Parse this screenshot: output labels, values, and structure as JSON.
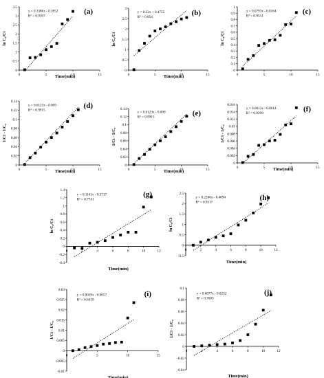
{
  "chart_data": [
    {
      "id": "a",
      "type": "scatter",
      "panel_label": "(a)",
      "equation": "y = 0.3386x - 0.3952",
      "r2": "R² = 0.9307",
      "ylabel": "ln C₀/Ct",
      "xlabel": "Time(min)",
      "xlim": [
        0,
        15
      ],
      "ylim": [
        0,
        3.5
      ],
      "xticks": [
        0,
        5,
        10,
        15
      ],
      "xtick_labels": [
        "0",
        "5",
        "10",
        "15"
      ],
      "yticks": [
        0,
        0.5,
        1,
        1.5,
        2,
        2.5,
        3,
        3.5
      ],
      "ytick_labels": [
        "0",
        "0.5",
        "1",
        "1.5",
        "2",
        "2.5",
        "3",
        "3.5"
      ],
      "x": [
        1,
        2,
        3,
        4,
        5,
        6,
        7,
        8,
        9,
        10
      ],
      "y": [
        0.02,
        0.68,
        0.7,
        0.85,
        1.13,
        1.3,
        1.48,
        2.56,
        2.8,
        3.25
      ]
    },
    {
      "id": "b",
      "type": "scatter",
      "panel_label": "(b)",
      "equation": "y = 0.22x + 0.4755",
      "r2": "R² = 0.854",
      "ylabel": "ln C₀/Ct",
      "xlabel": "Time(min)",
      "xlim": [
        0,
        15
      ],
      "ylim": [
        0,
        3
      ],
      "xticks": [
        0,
        5,
        10,
        15
      ],
      "xtick_labels": [
        "0",
        "5",
        "10",
        "15"
      ],
      "yticks": [
        0,
        0.5,
        1,
        1.5,
        2,
        2.5,
        3
      ],
      "ytick_labels": [
        "0",
        "0.5",
        "1",
        "1.5",
        "2",
        "2.5",
        "3"
      ],
      "x": [
        1,
        2,
        3,
        4,
        5,
        6,
        7,
        8,
        9,
        10,
        11
      ],
      "y": [
        0.02,
        0.95,
        1.3,
        1.65,
        1.9,
        2.0,
        2.1,
        2.25,
        2.35,
        2.48,
        2.55
      ]
    },
    {
      "id": "c",
      "type": "scatter",
      "panel_label": "(c)",
      "equation": "y = 0.0793x - 0.0164",
      "r2": "R² = 0.9551",
      "ylabel": "ln C₀/Ct",
      "xlabel": "",
      "xlim": [
        0,
        15
      ],
      "ylim": [
        0,
        1
      ],
      "xticks": [
        0,
        5,
        10,
        15
      ],
      "xtick_labels": [
        "0",
        "5",
        "10",
        "15"
      ],
      "yticks": [
        0,
        0.1,
        0.2,
        0.3,
        0.4,
        0.5,
        0.6,
        0.7,
        0.8,
        0.9,
        1
      ],
      "ytick_labels": [
        "0",
        "0.1",
        "0.2",
        "0.3",
        "0.4",
        "0.5",
        "0.6",
        "0.7",
        "0.8",
        "0.9",
        "1"
      ],
      "x": [
        1,
        2,
        3,
        4,
        5,
        6,
        7,
        8,
        9,
        10,
        11
      ],
      "y": [
        0.02,
        0.17,
        0.23,
        0.39,
        0.42,
        0.47,
        0.48,
        0.55,
        0.72,
        0.73,
        0.91
      ]
    },
    {
      "id": "d",
      "type": "scatter",
      "panel_label": "(d)",
      "equation": "y = 0.0123x - 0.009",
      "r2": "R² = 0.9915",
      "ylabel": "1/Ct - 1/C₀",
      "xlabel": "Time(min)",
      "xlim": [
        0,
        15
      ],
      "ylim": [
        0,
        0.14
      ],
      "xticks": [
        0,
        5,
        10,
        15
      ],
      "xtick_labels": [
        "0",
        "5",
        "10",
        "15"
      ],
      "yticks": [
        0,
        0.02,
        0.04,
        0.06,
        0.08,
        0.1,
        0.12,
        0.14
      ],
      "ytick_labels": [
        "0",
        "0.02",
        "0.04",
        "0.06",
        "0.08",
        "0.1",
        "0.12",
        "0.14"
      ],
      "x": [
        1,
        2,
        3,
        4,
        5,
        6,
        7,
        8,
        9,
        10,
        11
      ],
      "y": [
        0.001,
        0.016,
        0.026,
        0.039,
        0.05,
        0.06,
        0.07,
        0.083,
        0.095,
        0.108,
        0.121
      ]
    },
    {
      "id": "e",
      "type": "scatter",
      "panel_label": "(e)",
      "equation": "y = 0.0123x - 0.009",
      "r2": "R² = 0.9915",
      "ylabel": "1/Ct - 1/C₀",
      "xlabel": "Time(min)",
      "xlim": [
        0,
        15
      ],
      "ylim": [
        0,
        0.14
      ],
      "xticks": [
        0,
        5,
        10,
        15
      ],
      "xtick_labels": [
        "0",
        "5",
        "10",
        "15"
      ],
      "yticks": [
        0,
        0.02,
        0.04,
        0.06,
        0.08,
        0.1,
        0.12,
        0.14
      ],
      "ytick_labels": [
        "0",
        "0.02",
        "0.04",
        "0.06",
        "0.08",
        "0.1",
        "0.12",
        "0.14"
      ],
      "x": [
        1,
        2,
        3,
        4,
        5,
        6,
        7,
        8,
        9,
        10,
        11
      ],
      "y": [
        0.001,
        0.016,
        0.026,
        0.039,
        0.05,
        0.06,
        0.07,
        0.083,
        0.095,
        0.108,
        0.121
      ]
    },
    {
      "id": "f",
      "type": "scatter",
      "panel_label": "(f)",
      "equation": "y = 0.0013x - 0.0014",
      "r2": "R² = 0.9299",
      "ylabel": "1/Ct - 1/C₀",
      "xlabel": "Time(min)",
      "xlim": [
        0,
        15
      ],
      "ylim": [
        0,
        0.016
      ],
      "xticks": [
        0,
        5,
        10,
        15
      ],
      "xtick_labels": [
        "0",
        "5",
        "10",
        "15"
      ],
      "yticks": [
        0,
        0.002,
        0.004,
        0.006,
        0.008,
        0.01,
        0.012,
        0.014,
        0.016
      ],
      "ytick_labels": [
        "0",
        "0.002",
        "0.004",
        "0.006",
        "0.008",
        "0.01",
        "0.012",
        "0.014",
        "0.016"
      ],
      "x": [
        1,
        2,
        3,
        4,
        5,
        6,
        7,
        8,
        9,
        10,
        11
      ],
      "y": [
        0.0001,
        0.0018,
        0.0023,
        0.0048,
        0.005,
        0.006,
        0.0062,
        0.0078,
        0.0104,
        0.0107,
        0.0151
      ]
    },
    {
      "id": "g",
      "type": "scatter",
      "panel_label": "(g)",
      "equation": "y = 0.1161x - 0.3717",
      "r2": "R² = 0.7741",
      "ylabel": "ln C₀/Ct",
      "xlabel": "Time(min)",
      "xlim": [
        0,
        12
      ],
      "ylim": [
        -0.4,
        1.4
      ],
      "xticks": [
        0,
        2,
        4,
        6,
        8,
        10,
        12
      ],
      "xtick_labels": [
        "0",
        "2",
        "4",
        "6",
        "8",
        "10",
        "12"
      ],
      "yticks": [
        -0.4,
        -0.2,
        0,
        0.2,
        0.4,
        0.6,
        0.8,
        1,
        1.2,
        1.4
      ],
      "ytick_labels": [
        "-0.4",
        "-0.2",
        "0",
        "0.2",
        "0.4",
        "0.6",
        "0.8",
        "1",
        "1.2",
        "1.4"
      ],
      "x": [
        1,
        2,
        3,
        4,
        5,
        6,
        7,
        8,
        9,
        10,
        11
      ],
      "y": [
        -0.04,
        -0.05,
        0.08,
        0.1,
        0.14,
        0.22,
        0.28,
        0.35,
        0.35,
        0.97,
        1.22
      ]
    },
    {
      "id": "h",
      "type": "scatter",
      "panel_label": "(h)",
      "equation": "y = 0.2266x - 0.4694",
      "r2": "R² = 0.9317",
      "ylabel": "ln C₀/Ct",
      "xlabel": "Time(min)",
      "xlim": [
        0,
        12
      ],
      "ylim": [
        -0.5,
        2.5
      ],
      "xticks": [
        0,
        2,
        4,
        6,
        8,
        10,
        12
      ],
      "xtick_labels": [
        "0",
        "2",
        "4",
        "6",
        "8",
        "10",
        "12"
      ],
      "yticks": [
        -0.5,
        0,
        0.5,
        1,
        1.5,
        2,
        2.5
      ],
      "ytick_labels": [
        "-0.5",
        "0",
        "0.5",
        "1",
        "1.5",
        "2",
        "2.5"
      ],
      "x": [
        1,
        2,
        3,
        4,
        5,
        6,
        7,
        8,
        9,
        10,
        11
      ],
      "y": [
        0.0,
        0.15,
        0.25,
        0.38,
        0.45,
        0.55,
        0.97,
        1.2,
        1.55,
        1.98,
        2.28
      ]
    },
    {
      "id": "i",
      "type": "scatter",
      "panel_label": "(i)",
      "equation": "y = 0.0019x - 0.0057",
      "r2": "R² = 0.6439",
      "ylabel": "1/Ct - 1/C₀",
      "xlabel": "Time(min)",
      "xlim": [
        0,
        15
      ],
      "ylim": [
        -0.01,
        0.03
      ],
      "xticks": [
        0,
        5,
        10,
        15
      ],
      "xtick_labels": [
        "0",
        "5",
        "10",
        "15"
      ],
      "yticks": [
        -0.01,
        -0.005,
        0,
        0.005,
        0.01,
        0.015,
        0.02,
        0.025,
        0.03
      ],
      "ytick_labels": [
        "-0.01",
        "-0.005",
        "0",
        "0.005",
        "0.01",
        "0.015",
        "0.02",
        "0.025",
        "0.03"
      ],
      "x": [
        1,
        2,
        3,
        4,
        5,
        6,
        7,
        8,
        9,
        10,
        11
      ],
      "y": [
        0.0,
        0.0005,
        0.0015,
        0.002,
        0.0025,
        0.0032,
        0.0035,
        0.004,
        0.0042,
        0.016,
        0.0235
      ]
    },
    {
      "id": "j",
      "type": "scatter",
      "panel_label": "(j)",
      "equation": "y = 0.0077x - 0.0232",
      "r2": "R² = 0.7603",
      "ylabel": "1/Ct - 1/C₀",
      "xlabel": "Time(min)",
      "xlim": [
        0,
        12
      ],
      "ylim": [
        -0.04,
        0.1
      ],
      "xticks": [
        0,
        2,
        4,
        6,
        8,
        10,
        12
      ],
      "xtick_labels": [
        "0",
        "2",
        "4",
        "6",
        "8",
        "10",
        "12"
      ],
      "yticks": [
        -0.04,
        -0.02,
        0,
        0.02,
        0.04,
        0.06,
        0.08,
        0.1
      ],
      "ytick_labels": [
        "-0.04",
        "-0.02",
        "0",
        "0.02",
        "0.04",
        "0.06",
        "0.08",
        "0.1"
      ],
      "x": [
        1,
        2,
        3,
        4,
        5,
        6,
        7,
        8,
        9,
        10,
        11
      ],
      "y": [
        0.0,
        0.001,
        0.002,
        0.003,
        0.004,
        0.006,
        0.01,
        0.02,
        0.038,
        0.062,
        0.088
      ]
    }
  ]
}
